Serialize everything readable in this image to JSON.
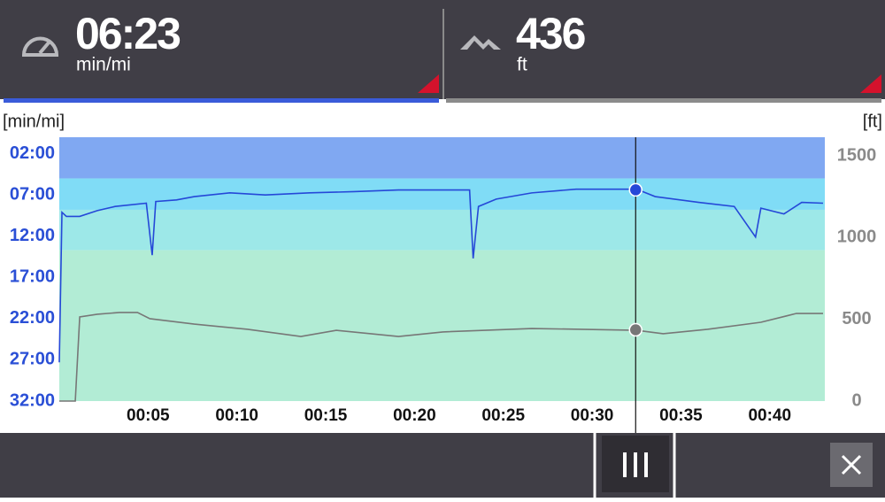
{
  "header": {
    "tiles": [
      {
        "value": "06:23",
        "unit": "min/mi"
      },
      {
        "value": "436",
        "unit": "ft"
      }
    ]
  },
  "chart_data": {
    "type": "line",
    "y_label": "[min/mi]",
    "y2_label": "[ft]",
    "xlim": [
      0,
      43.1
    ],
    "xticks": [
      {
        "value": 5,
        "label": "00:05"
      },
      {
        "value": 10,
        "label": "00:10"
      },
      {
        "value": 15,
        "label": "00:15"
      },
      {
        "value": 20,
        "label": "00:20"
      },
      {
        "value": 25,
        "label": "00:25"
      },
      {
        "value": 30,
        "label": "00:30"
      },
      {
        "value": 35,
        "label": "00:35"
      },
      {
        "value": 40,
        "label": "00:40"
      }
    ],
    "ylim": [
      32,
      0
    ],
    "yticks": [
      {
        "value": 2,
        "label": "02:00"
      },
      {
        "value": 7,
        "label": "07:00"
      },
      {
        "value": 12,
        "label": "12:00"
      },
      {
        "value": 17,
        "label": "17:00"
      },
      {
        "value": 22,
        "label": "22:00"
      },
      {
        "value": 27,
        "label": "27:00"
      },
      {
        "value": 32,
        "label": "32:00"
      }
    ],
    "y2lim": [
      0,
      1614
    ],
    "y2ticks": [
      0,
      500,
      1000,
      1500
    ],
    "zones": [
      {
        "from": 0,
        "to": 5,
        "color": "#80a8f2"
      },
      {
        "from": 5,
        "to": 8.8,
        "color": "#80dcf6"
      },
      {
        "from": 8.8,
        "to": 13.7,
        "color": "#9de8e8"
      },
      {
        "from": 13.7,
        "to": 32,
        "color": "#b2ecd5"
      }
    ],
    "series": [
      {
        "color": "#2548d8",
        "x": [
          0,
          0.15,
          0.4,
          1.15,
          2.14,
          3.14,
          4.9,
          5.23,
          5.43,
          6.6,
          7.6,
          9.6,
          11.6,
          14.1,
          16.6,
          19.1,
          23.1,
          23.3,
          23.6,
          24.6,
          26.6,
          29.1,
          32.5,
          33.55,
          36.0,
          38.0,
          39.2,
          39.5,
          40.8,
          41.8,
          43.0
        ],
        "values": [
          27.3,
          9.1,
          9.6,
          9.6,
          8.9,
          8.4,
          8.0,
          14.3,
          7.8,
          7.6,
          7.2,
          6.75,
          7.0,
          6.75,
          6.6,
          6.4,
          6.4,
          14.7,
          8.4,
          7.5,
          6.75,
          6.3,
          6.3,
          7.2,
          7.9,
          8.4,
          12.1,
          8.6,
          9.3,
          7.9,
          8.0
        ]
      },
      {
        "color": "#777777",
        "axis": "y2",
        "x": [
          0,
          0.9,
          1.15,
          2.14,
          3.4,
          4.4,
          5.1,
          7.6,
          10.6,
          13.6,
          15.6,
          19.1,
          21.6,
          26.6,
          32.5,
          34.0,
          36.5,
          39.5,
          41.5,
          43.0
        ],
        "values": [
          0,
          0,
          515,
          531,
          542,
          542,
          504,
          471,
          439,
          395,
          433,
          395,
          423,
          444,
          433,
          412,
          439,
          482,
          536,
          536
        ]
      }
    ],
    "cursor": {
      "x": 32.45,
      "values": [
        6.38,
        436
      ]
    }
  }
}
